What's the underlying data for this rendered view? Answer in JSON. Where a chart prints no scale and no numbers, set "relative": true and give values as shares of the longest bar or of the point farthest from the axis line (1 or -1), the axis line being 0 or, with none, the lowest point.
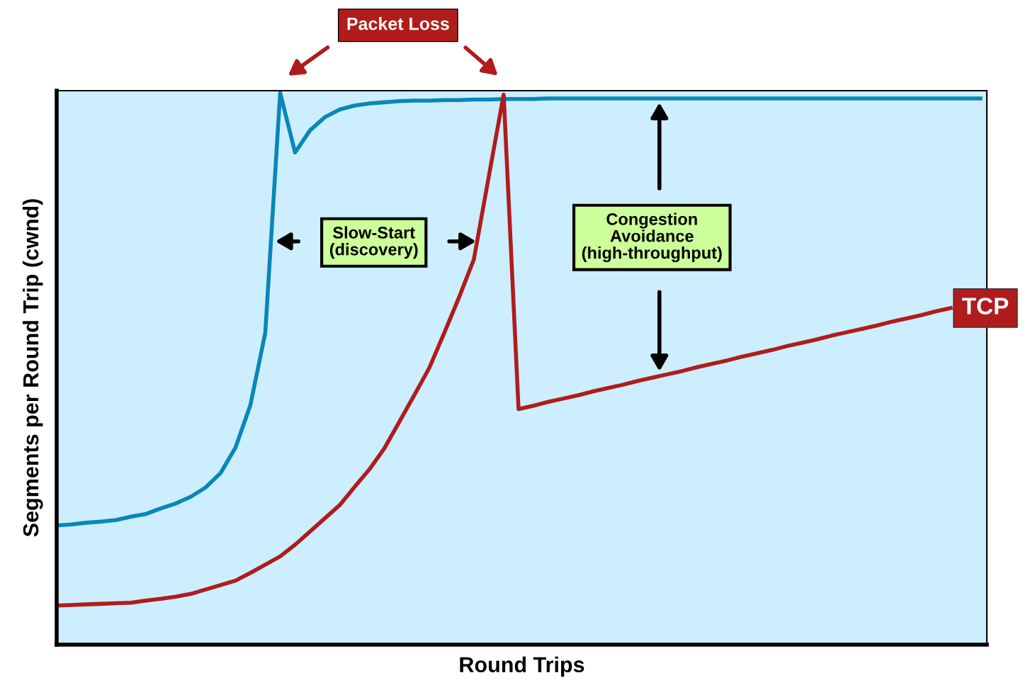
{
  "chart_data": {
    "type": "line",
    "relative": true,
    "xlabel": "Round Trips",
    "ylabel": "Segments per Round Trip (cwnd)",
    "categories": [
      null,
      null,
      null,
      null,
      null,
      null,
      null,
      null,
      null,
      null,
      null,
      null,
      null,
      null,
      null,
      null,
      null,
      null,
      null,
      null,
      null,
      null,
      null,
      null,
      null,
      null,
      null,
      null,
      null,
      null,
      null,
      null,
      null,
      null,
      null,
      null,
      null,
      null,
      null,
      null,
      null,
      null,
      null,
      null,
      null,
      null,
      null,
      null,
      null,
      null,
      null,
      null,
      null,
      null,
      null,
      null,
      null,
      null,
      null,
      null,
      null,
      null,
      null
    ],
    "series": [
      {
        "color": "#0a86b8",
        "values": [
          0.216,
          0.218,
          0.221,
          0.223,
          0.226,
          0.232,
          0.237,
          0.247,
          0.256,
          0.268,
          0.285,
          0.311,
          0.357,
          0.434,
          0.565,
          1.0,
          0.892,
          0.932,
          0.956,
          0.97,
          0.977,
          0.981,
          0.983,
          0.985,
          0.986,
          0.986,
          0.987,
          0.987,
          0.988,
          0.988,
          0.989,
          0.989,
          0.989,
          0.99,
          0.99,
          0.99,
          0.99,
          0.99,
          0.99,
          0.99,
          0.99,
          0.99,
          0.99,
          0.99,
          0.99,
          0.99,
          0.99,
          0.99,
          0.99,
          0.99,
          0.99,
          0.99,
          0.99,
          0.99,
          0.99,
          0.99,
          0.99,
          0.99,
          0.99,
          0.99,
          0.99,
          0.99,
          0.99
        ]
      },
      {
        "name": "TCP",
        "color": "#b01c1c",
        "values": [
          0.071,
          0.072,
          0.073,
          0.074,
          0.075,
          0.076,
          0.08,
          0.083,
          0.087,
          0.092,
          0.1,
          0.108,
          0.116,
          0.13,
          0.145,
          0.16,
          0.181,
          0.205,
          0.229,
          0.253,
          0.286,
          0.318,
          0.356,
          0.404,
          0.452,
          0.501,
          0.564,
          0.629,
          0.698,
          0.848,
          0.997,
          0.427,
          0.433,
          0.44,
          0.446,
          0.452,
          0.459,
          0.465,
          0.471,
          0.478,
          0.484,
          0.49,
          0.496,
          0.503,
          0.509,
          0.515,
          0.522,
          0.528,
          0.534,
          0.541,
          0.547,
          0.553,
          0.56,
          0.566,
          0.572,
          0.578,
          0.585,
          0.591,
          0.597,
          0.604,
          0.61,
          null,
          null
        ]
      }
    ],
    "annotations": [
      "Packet Loss",
      "Slow-Start\n(discovery)",
      "Congestion\nAvoidance\n(high-throughput)"
    ],
    "legend": false,
    "marker": "none",
    "line_style": "solid"
  }
}
